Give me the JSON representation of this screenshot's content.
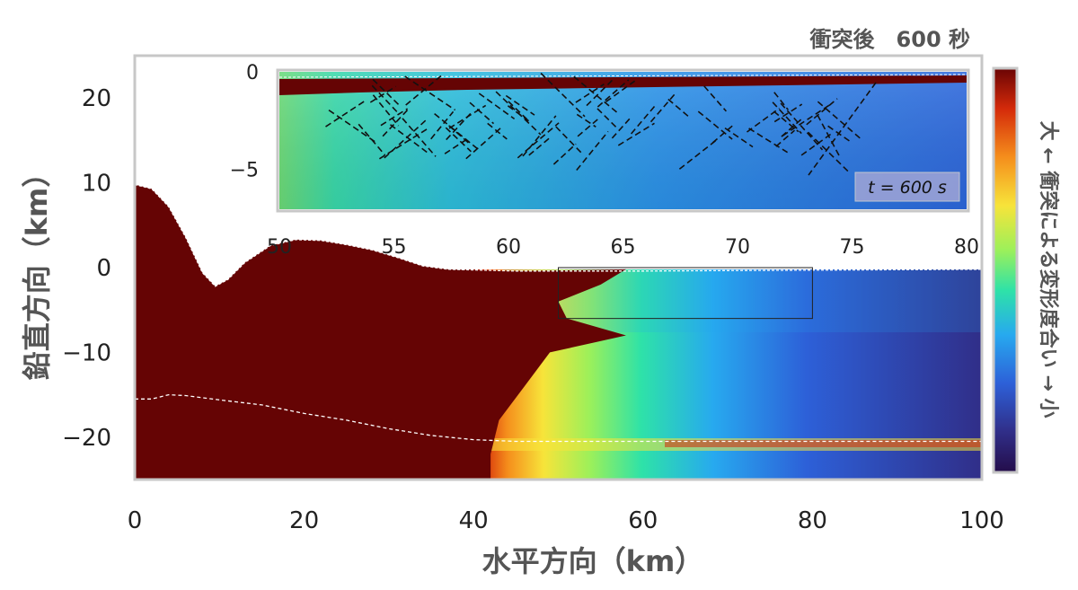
{
  "chart_data": {
    "type": "heatmap",
    "title": "衝突後　600 秒",
    "xlabel": "水平方向（km）",
    "ylabel": "鉛直方向（km）",
    "xlim": [
      0,
      100
    ],
    "ylim": [
      -25,
      25
    ],
    "x_ticks": [
      "0",
      "20",
      "40",
      "60",
      "80",
      "100"
    ],
    "y_ticks": [
      "20",
      "10",
      "0",
      "−10",
      "−20"
    ],
    "colorbar": {
      "label": "大 ← 衝突による変形度合い → 小",
      "colors": [
        "#6a0404",
        "#d42a0a",
        "#f58e1c",
        "#f7e43a",
        "#9cf05a",
        "#2ee2a8",
        "#27a9ef",
        "#2d60d8",
        "#302e88",
        "#240d4a"
      ]
    },
    "surface_profile": [
      [
        0,
        9.8
      ],
      [
        2,
        9.3
      ],
      [
        4,
        7.2
      ],
      [
        6,
        3.6
      ],
      [
        8,
        -0.6
      ],
      [
        9.5,
        -2.2
      ],
      [
        11,
        -1.4
      ],
      [
        13,
        0.6
      ],
      [
        16,
        2.6
      ],
      [
        19,
        3.3
      ],
      [
        22,
        3.2
      ],
      [
        25,
        2.7
      ],
      [
        28,
        2.1
      ],
      [
        31,
        1.2
      ],
      [
        34,
        0.2
      ],
      [
        37,
        -0.2
      ],
      [
        45,
        -0.4
      ],
      [
        60,
        -0.4
      ],
      [
        80,
        -0.3
      ],
      [
        100,
        -0.2
      ]
    ],
    "lower_boundary": [
      [
        0,
        -15.5
      ],
      [
        2,
        -15.5
      ],
      [
        4,
        -15
      ],
      [
        6,
        -15.1
      ],
      [
        10,
        -15.6
      ],
      [
        15,
        -16.2
      ],
      [
        20,
        -17.2
      ],
      [
        25,
        -18
      ],
      [
        30,
        -19
      ],
      [
        35,
        -19.8
      ],
      [
        40,
        -20.3
      ],
      [
        45,
        -20.5
      ],
      [
        60,
        -20.5
      ],
      [
        80,
        -20.5
      ],
      [
        100,
        -20.5
      ]
    ],
    "inset_box": {
      "x": [
        50,
        80
      ],
      "y": [
        -6,
        0
      ]
    },
    "inset": {
      "xlim": [
        50,
        80
      ],
      "ylim": [
        -6,
        0
      ],
      "x_ticks": [
        "50",
        "55",
        "60",
        "65",
        "70",
        "75",
        "80"
      ],
      "y_ticks": [
        "0",
        "−5"
      ],
      "annotation": "t =  600 s"
    }
  }
}
